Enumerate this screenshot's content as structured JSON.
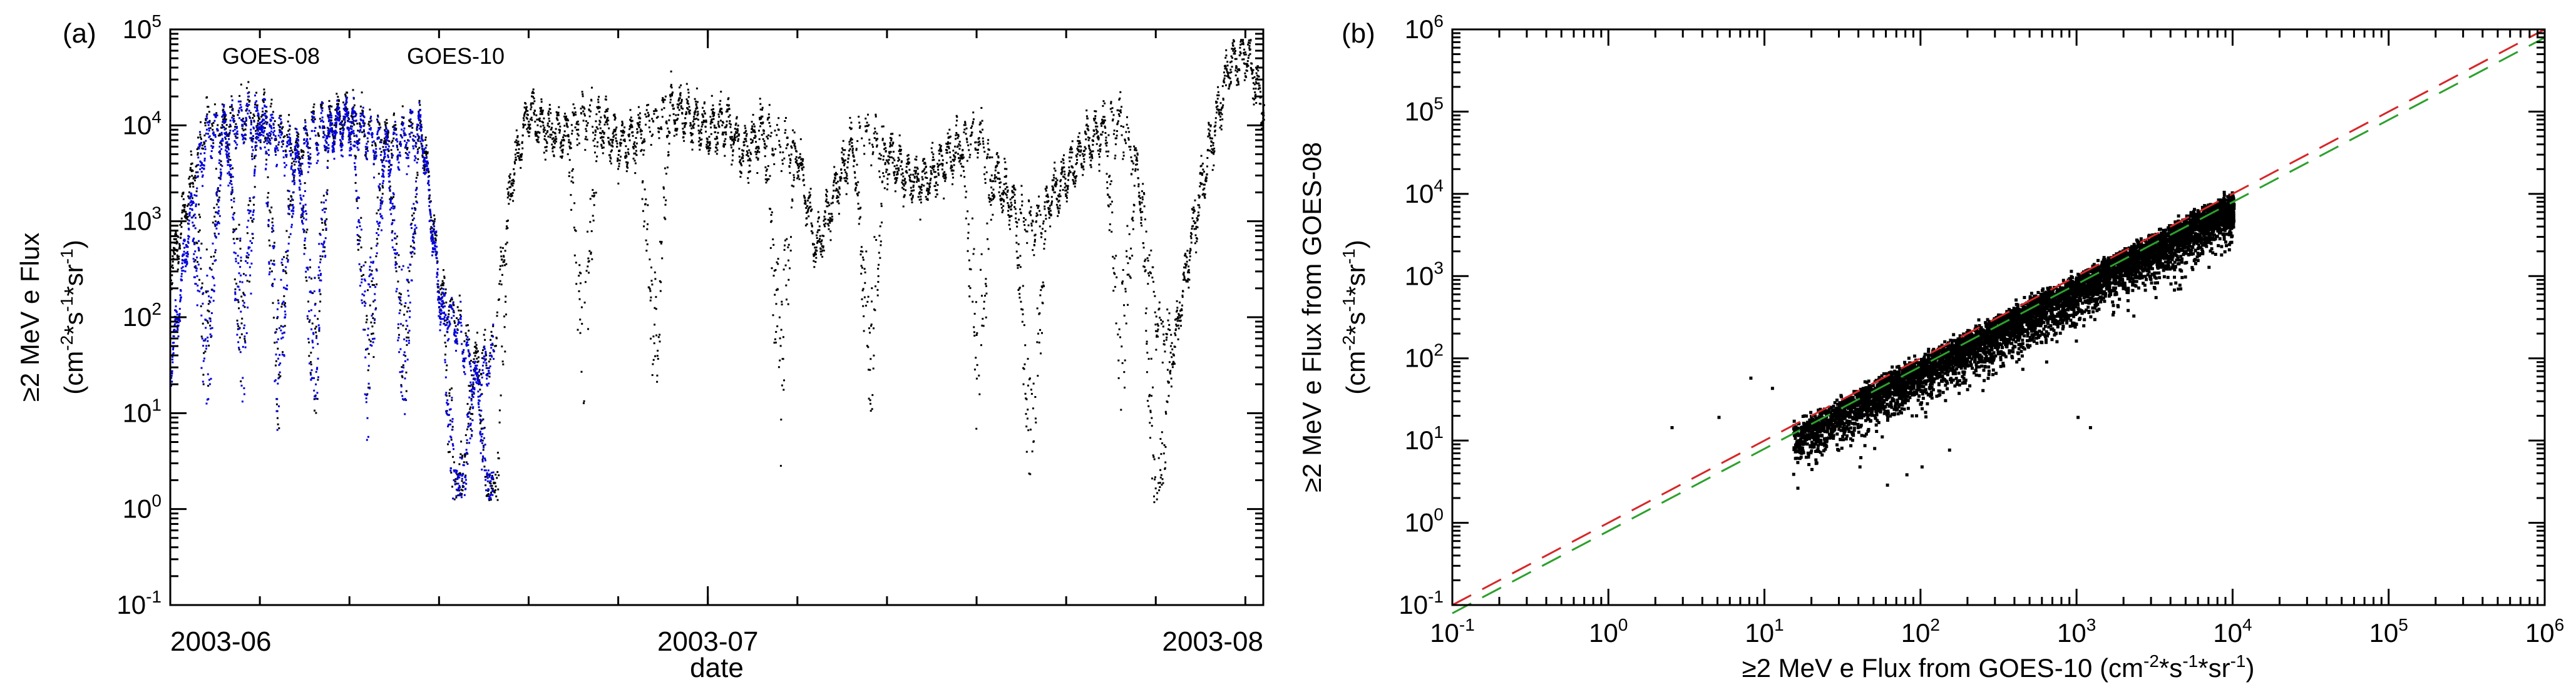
{
  "panels": {
    "a": {
      "label": "(a)"
    },
    "b": {
      "label": "(b)"
    }
  },
  "chart_data": [
    {
      "type": "scatter",
      "panel": "(a)",
      "title": "",
      "xlabel": "date",
      "ylabel_line1": "≥2 MeV e Flux",
      "ylabel_line2": {
        "pre": "(cm",
        "sup1": "-2",
        "mid1": "*s",
        "sup2": "-1",
        "mid2": "*sr",
        "sup3": "-1",
        "post": ")"
      },
      "xlim": [
        "2003-06-01",
        "2003-08-01"
      ],
      "ylim": [
        0.1,
        100000
      ],
      "yscale": "log",
      "xticks": [
        {
          "date": "2003-06-01",
          "label": "2003-06"
        },
        {
          "date": "2003-07-01",
          "label": "2003-07"
        },
        {
          "date": "2003-08-01",
          "label": "2003-08"
        }
      ],
      "yticks": [
        {
          "value": 0.1,
          "base": "10",
          "exp": "-1"
        },
        {
          "value": 1,
          "base": "10",
          "exp": "0"
        },
        {
          "value": 10,
          "base": "10",
          "exp": "1"
        },
        {
          "value": 100,
          "base": "10",
          "exp": "2"
        },
        {
          "value": 1000,
          "base": "10",
          "exp": "3"
        },
        {
          "value": 10000,
          "base": "10",
          "exp": "4"
        },
        {
          "value": 100000,
          "base": "10",
          "exp": "5"
        }
      ],
      "legend": [
        {
          "name": "GOES-08",
          "color": "#0000dd"
        },
        {
          "name": "GOES-10",
          "color": "#000000"
        }
      ],
      "series": [
        {
          "name": "GOES-10",
          "color": "#000000",
          "x": [
            "2003-06-01",
            "2003-06-02",
            "2003-06-03",
            "2003-06-04",
            "2003-06-05",
            "2003-06-06",
            "2003-06-07",
            "2003-06-08",
            "2003-06-09",
            "2003-06-10",
            "2003-06-11",
            "2003-06-12",
            "2003-06-13",
            "2003-06-14",
            "2003-06-15",
            "2003-06-16",
            "2003-06-17",
            "2003-06-18",
            "2003-06-19",
            "2003-06-20",
            "2003-06-21",
            "2003-06-22",
            "2003-06-23",
            "2003-06-24",
            "2003-06-25",
            "2003-06-26",
            "2003-06-27",
            "2003-06-28",
            "2003-06-29",
            "2003-06-30",
            "2003-07-01",
            "2003-07-02",
            "2003-07-03",
            "2003-07-04",
            "2003-07-05",
            "2003-07-06",
            "2003-07-07",
            "2003-07-08",
            "2003-07-09",
            "2003-07-10",
            "2003-07-11",
            "2003-07-12",
            "2003-07-13",
            "2003-07-14",
            "2003-07-15",
            "2003-07-16",
            "2003-07-17",
            "2003-07-18",
            "2003-07-19",
            "2003-07-20",
            "2003-07-21",
            "2003-07-22",
            "2003-07-23",
            "2003-07-24",
            "2003-07-25",
            "2003-07-26",
            "2003-07-27",
            "2003-07-28",
            "2003-07-29",
            "2003-07-30",
            "2003-07-31",
            "2003-08-01"
          ],
          "y": [
            300,
            2000,
            12000,
            10000,
            13000,
            14000,
            9000,
            5000,
            9000,
            11000,
            13000,
            9000,
            6000,
            8000,
            10000,
            200,
            100,
            30,
            50,
            3000,
            14000,
            9000,
            8000,
            13000,
            10000,
            6000,
            8000,
            12000,
            15000,
            13000,
            9000,
            11000,
            5000,
            9000,
            7000,
            5000,
            500,
            2000,
            6000,
            8000,
            5000,
            3000,
            2500,
            4000,
            6000,
            8000,
            3000,
            1500,
            900,
            1500,
            3000,
            6000,
            9000,
            11000,
            3000,
            100,
            50,
            800,
            6000,
            40000,
            60000,
            15000
          ]
        },
        {
          "name": "GOES-08",
          "color": "#0000dd",
          "x": [
            "2003-06-01",
            "2003-06-02",
            "2003-06-03",
            "2003-06-04",
            "2003-06-05",
            "2003-06-06",
            "2003-06-07",
            "2003-06-08",
            "2003-06-09",
            "2003-06-10",
            "2003-06-11",
            "2003-06-12",
            "2003-06-13",
            "2003-06-14",
            "2003-06-15",
            "2003-06-16",
            "2003-06-17",
            "2003-06-18",
            "2003-06-19"
          ],
          "y": [
            30,
            1000,
            8000,
            8000,
            11000,
            12000,
            7000,
            4000,
            8000,
            9000,
            11000,
            8000,
            5000,
            7000,
            9000,
            150,
            80,
            20,
            40
          ]
        }
      ],
      "x_dips": [
        "2003-06-03",
        "2003-06-05",
        "2003-06-07",
        "2003-06-09",
        "2003-06-12",
        "2003-06-14",
        "2003-06-17",
        "2003-06-19",
        "2003-06-24",
        "2003-06-28",
        "2003-07-05",
        "2003-07-10",
        "2003-07-16",
        "2003-07-19",
        "2003-07-24",
        "2003-07-26"
      ],
      "grid": false,
      "legend_position": "top-left"
    },
    {
      "type": "scatter",
      "panel": "(b)",
      "title": "",
      "xlabel": {
        "pre": "≥2 MeV e Flux from GOES-10 (cm",
        "sup1": "-2",
        "mid1": "*s",
        "sup2": "-1",
        "mid2": "*sr",
        "sup3": "-1",
        "post": ")"
      },
      "ylabel_line1": "≥2 MeV e Flux from GOES-08",
      "ylabel_line2": {
        "pre": "(cm",
        "sup1": "-2",
        "mid1": "*s",
        "sup2": "-1",
        "mid2": "*sr",
        "sup3": "-1",
        "post": ")"
      },
      "xlim": [
        0.1,
        1000000
      ],
      "ylim": [
        0.1,
        1000000
      ],
      "xscale": "log",
      "yscale": "log",
      "ticks": [
        {
          "value": 0.1,
          "base": "10",
          "exp": "-1"
        },
        {
          "value": 1,
          "base": "10",
          "exp": "0"
        },
        {
          "value": 10,
          "base": "10",
          "exp": "1"
        },
        {
          "value": 100,
          "base": "10",
          "exp": "2"
        },
        {
          "value": 1000,
          "base": "10",
          "exp": "3"
        },
        {
          "value": 10000,
          "base": "10",
          "exp": "4"
        },
        {
          "value": 100000,
          "base": "10",
          "exp": "5"
        },
        {
          "value": 1000000,
          "base": "10",
          "exp": "6"
        }
      ],
      "cloud": {
        "x_range": [
          15,
          10000
        ],
        "y_ratio_range": [
          0.15,
          1.4
        ],
        "ridge_ratio": 1.0
      },
      "outliers": [
        {
          "x": 2.5,
          "y": 15
        },
        {
          "x": 8,
          "y": 60
        },
        {
          "x": 5,
          "y": 20
        },
        {
          "x": 11,
          "y": 45
        },
        {
          "x": 40,
          "y": 5
        },
        {
          "x": 60,
          "y": 3
        },
        {
          "x": 80,
          "y": 4
        },
        {
          "x": 100,
          "y": 5
        },
        {
          "x": 150,
          "y": 8
        },
        {
          "x": 1000,
          "y": 20
        },
        {
          "x": 1200,
          "y": 15
        }
      ],
      "lines": [
        {
          "color": "#d62728",
          "x": [
            0.1,
            1000000
          ],
          "y": [
            0.1,
            1000000
          ]
        },
        {
          "color": "#2ca02c",
          "x": [
            0.1,
            1000000
          ],
          "y": [
            0.0794,
            794328
          ]
        }
      ],
      "grid": false
    }
  ]
}
